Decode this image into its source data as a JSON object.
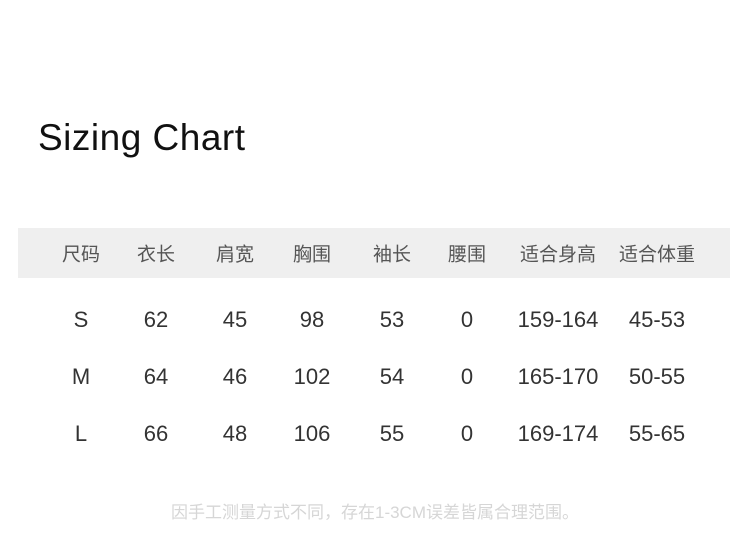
{
  "page": {
    "title": "Sizing Chart",
    "footer_note": "因手工测量方式不同，存在1-3CM误差皆属合理范围。"
  },
  "colors": {
    "page_background": "#ffffff",
    "header_row_background": "#efefef",
    "header_text": "#555555",
    "body_text": "#333333",
    "title_text": "#111111",
    "footer_text": "#d6d6d6"
  },
  "chart_data": {
    "type": "table",
    "title": "Sizing Chart",
    "columns": [
      "尺码",
      "衣长",
      "肩宽",
      "胸围",
      "袖长",
      "腰围",
      "适合身高",
      "适合体重"
    ],
    "rows": [
      [
        "S",
        "62",
        "45",
        "98",
        "53",
        "0",
        "159-164",
        "45-53"
      ],
      [
        "M",
        "64",
        "46",
        "102",
        "54",
        "0",
        "165-170",
        "50-55"
      ],
      [
        "L",
        "66",
        "48",
        "106",
        "55",
        "0",
        "169-174",
        "55-65"
      ]
    ],
    "note": "因手工测量方式不同，存在1-3CM误差皆属合理范围。"
  }
}
